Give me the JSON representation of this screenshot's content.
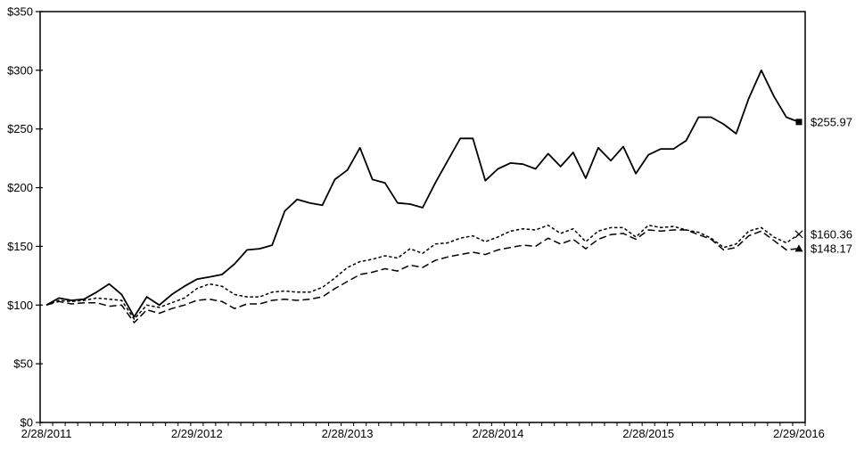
{
  "chart_data": {
    "type": "line",
    "title": "",
    "background": "#ffffff",
    "line_color": "#000000",
    "grid": false,
    "legend": "none (end-of-line labels instead)",
    "y_axis": {
      "min": 0,
      "max": 350,
      "step": 50,
      "prefix": "$",
      "tick_labels": [
        "$0",
        "$50",
        "$100",
        "$150",
        "$200",
        "$250",
        "$300",
        "$350"
      ]
    },
    "x_axis": {
      "tick_labels": [
        "2/28/2011",
        "2/29/2012",
        "2/28/2013",
        "2/28/2014",
        "2/28/2015",
        "2/29/2016"
      ],
      "minor_ticks_per_label": 12,
      "points_total": 61,
      "granularity": "monthly"
    },
    "series": [
      {
        "name": "series-solid",
        "line_style": "solid",
        "end_marker": "square",
        "end_label": "$255.97",
        "end_value": 255.97,
        "values": [
          100,
          106,
          104,
          105,
          111,
          118,
          109,
          90,
          107,
          100,
          109,
          116,
          122,
          124,
          126,
          135,
          147,
          148,
          151,
          180,
          190,
          187,
          185,
          207,
          215,
          234,
          207,
          204,
          187,
          186,
          183,
          204,
          223,
          242,
          242,
          206,
          216,
          221,
          220,
          216,
          229,
          218,
          230,
          208,
          234,
          223,
          235,
          212,
          228,
          233,
          233,
          240,
          260,
          260,
          254,
          246,
          276,
          300,
          278,
          260,
          255.97
        ]
      },
      {
        "name": "series-short-dash",
        "line_style": "short-dash",
        "end_marker": "x",
        "end_label": "$160.36",
        "end_value": 160.36,
        "values": [
          100,
          104,
          103,
          104,
          106,
          105,
          104,
          88,
          100,
          98,
          102,
          106,
          114,
          118,
          116,
          109,
          107,
          107,
          111,
          112,
          111,
          111,
          115,
          123,
          132,
          137,
          139,
          142,
          140,
          148,
          144,
          152,
          153,
          157,
          159,
          154,
          158,
          163,
          165,
          164,
          168,
          161,
          165,
          154,
          163,
          166,
          166,
          158,
          168,
          166,
          167,
          164,
          162,
          157,
          149,
          152,
          163,
          166,
          158,
          153,
          160.36
        ]
      },
      {
        "name": "series-long-dash",
        "line_style": "long-dash",
        "end_marker": "triangle",
        "end_label": "$148.17",
        "end_value": 148.17,
        "values": [
          100,
          103,
          101,
          102,
          102,
          99,
          100,
          85,
          96,
          93,
          97,
          100,
          104,
          105,
          103,
          97,
          101,
          101,
          104,
          105,
          104,
          105,
          107,
          114,
          120,
          126,
          128,
          131,
          129,
          134,
          132,
          138,
          141,
          143,
          145,
          143,
          147,
          149,
          151,
          150,
          157,
          152,
          156,
          148,
          156,
          160,
          161,
          156,
          164,
          163,
          164,
          164,
          160,
          156,
          147,
          149,
          159,
          163,
          155,
          147,
          148.17
        ]
      }
    ]
  }
}
